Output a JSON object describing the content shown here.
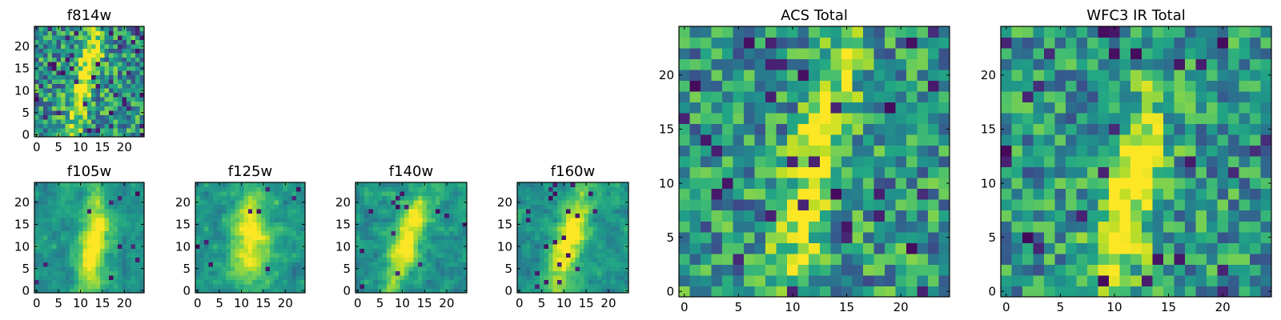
{
  "figure": {
    "colormap": "viridis",
    "background": "#ffffff",
    "spine_color": "#000000"
  },
  "chart_data": [
    {
      "type": "heatmap",
      "title": "f814w",
      "grid_size": [
        25,
        25
      ],
      "xlim": [
        -0.5,
        24.5
      ],
      "ylim": [
        -0.5,
        24.5
      ],
      "xticks": [
        0,
        5,
        10,
        15,
        20
      ],
      "yticks": [
        0,
        5,
        10,
        15,
        20
      ],
      "colormap": "viridis",
      "seed": 11,
      "ridge": {
        "x_center": 11,
        "slope": 0.25,
        "y_center": 12,
        "width": 2.4,
        "strength": 0.55,
        "y_extent": 11
      },
      "noise": 0.62,
      "pixel_scale": 1,
      "dark_pixel_fraction": 0.05
    },
    {
      "type": "heatmap",
      "title": "f105w",
      "grid_size": [
        25,
        25
      ],
      "xlim": [
        -0.5,
        24.5
      ],
      "ylim": [
        -0.5,
        24.5
      ],
      "xticks": [
        0,
        5,
        10,
        15,
        20
      ],
      "yticks": [
        0,
        5,
        10,
        15,
        20
      ],
      "colormap": "viridis",
      "seed": 23,
      "ridge": {
        "x_center": 13,
        "slope": 0.1,
        "y_center": 10,
        "width": 3.0,
        "strength": 0.6,
        "y_extent": 10
      },
      "noise": 0.32,
      "pixel_scale": 2,
      "dark_pixel_fraction": 0.01
    },
    {
      "type": "heatmap",
      "title": "f125w",
      "grid_size": [
        25,
        25
      ],
      "xlim": [
        -0.5,
        24.5
      ],
      "ylim": [
        -0.5,
        24.5
      ],
      "xticks": [
        0,
        5,
        10,
        15,
        20
      ],
      "yticks": [
        0,
        5,
        10,
        15,
        20
      ],
      "colormap": "viridis",
      "seed": 37,
      "ridge": {
        "x_center": 12,
        "slope": 0.05,
        "y_center": 12,
        "width": 4.5,
        "strength": 0.5,
        "y_extent": 11
      },
      "noise": 0.34,
      "pixel_scale": 2,
      "dark_pixel_fraction": 0.015
    },
    {
      "type": "heatmap",
      "title": "f140w",
      "grid_size": [
        25,
        25
      ],
      "xlim": [
        -0.5,
        24.5
      ],
      "ylim": [
        -0.5,
        24.5
      ],
      "xticks": [
        0,
        5,
        10,
        15,
        20
      ],
      "yticks": [
        0,
        5,
        10,
        15,
        20
      ],
      "colormap": "viridis",
      "seed": 53,
      "ridge": {
        "x_center": 11,
        "slope": 0.3,
        "y_center": 11,
        "width": 3.2,
        "strength": 0.55,
        "y_extent": 11
      },
      "noise": 0.36,
      "pixel_scale": 2,
      "dark_pixel_fraction": 0.03
    },
    {
      "type": "heatmap",
      "title": "f160w",
      "grid_size": [
        25,
        25
      ],
      "xlim": [
        -0.5,
        24.5
      ],
      "ylim": [
        -0.5,
        24.5
      ],
      "xticks": [
        0,
        5,
        10,
        15,
        20
      ],
      "yticks": [
        0,
        5,
        10,
        15,
        20
      ],
      "colormap": "viridis",
      "seed": 71,
      "ridge": {
        "x_center": 11,
        "slope": 0.25,
        "y_center": 11,
        "width": 3.5,
        "strength": 0.55,
        "y_extent": 11
      },
      "noise": 0.36,
      "pixel_scale": 2,
      "dark_pixel_fraction": 0.03
    },
    {
      "type": "heatmap",
      "title": "ACS Total",
      "grid_size": [
        25,
        25
      ],
      "xlim": [
        -0.5,
        24.5
      ],
      "ylim": [
        -0.5,
        24.5
      ],
      "xticks": [
        0,
        5,
        10,
        15,
        20
      ],
      "yticks": [
        0,
        5,
        10,
        15,
        20
      ],
      "colormap": "viridis",
      "seed": 97,
      "ridge": {
        "x_center": 12,
        "slope": 0.25,
        "y_center": 11,
        "width": 2.3,
        "strength": 0.5,
        "y_extent": 11
      },
      "noise": 0.6,
      "pixel_scale": 1,
      "dark_pixel_fraction": 0.05
    },
    {
      "type": "heatmap",
      "title": "WFC3 IR Total",
      "grid_size": [
        25,
        25
      ],
      "xlim": [
        -0.5,
        24.5
      ],
      "ylim": [
        -0.5,
        24.5
      ],
      "xticks": [
        0,
        5,
        10,
        15,
        20
      ],
      "yticks": [
        0,
        5,
        10,
        15,
        20
      ],
      "colormap": "viridis",
      "seed": 131,
      "ridge": {
        "x_center": 11,
        "slope": 0.2,
        "y_center": 8,
        "width": 2.6,
        "strength": 0.55,
        "y_extent": 9
      },
      "noise": 0.55,
      "pixel_scale": 1,
      "dark_pixel_fraction": 0.035
    }
  ]
}
